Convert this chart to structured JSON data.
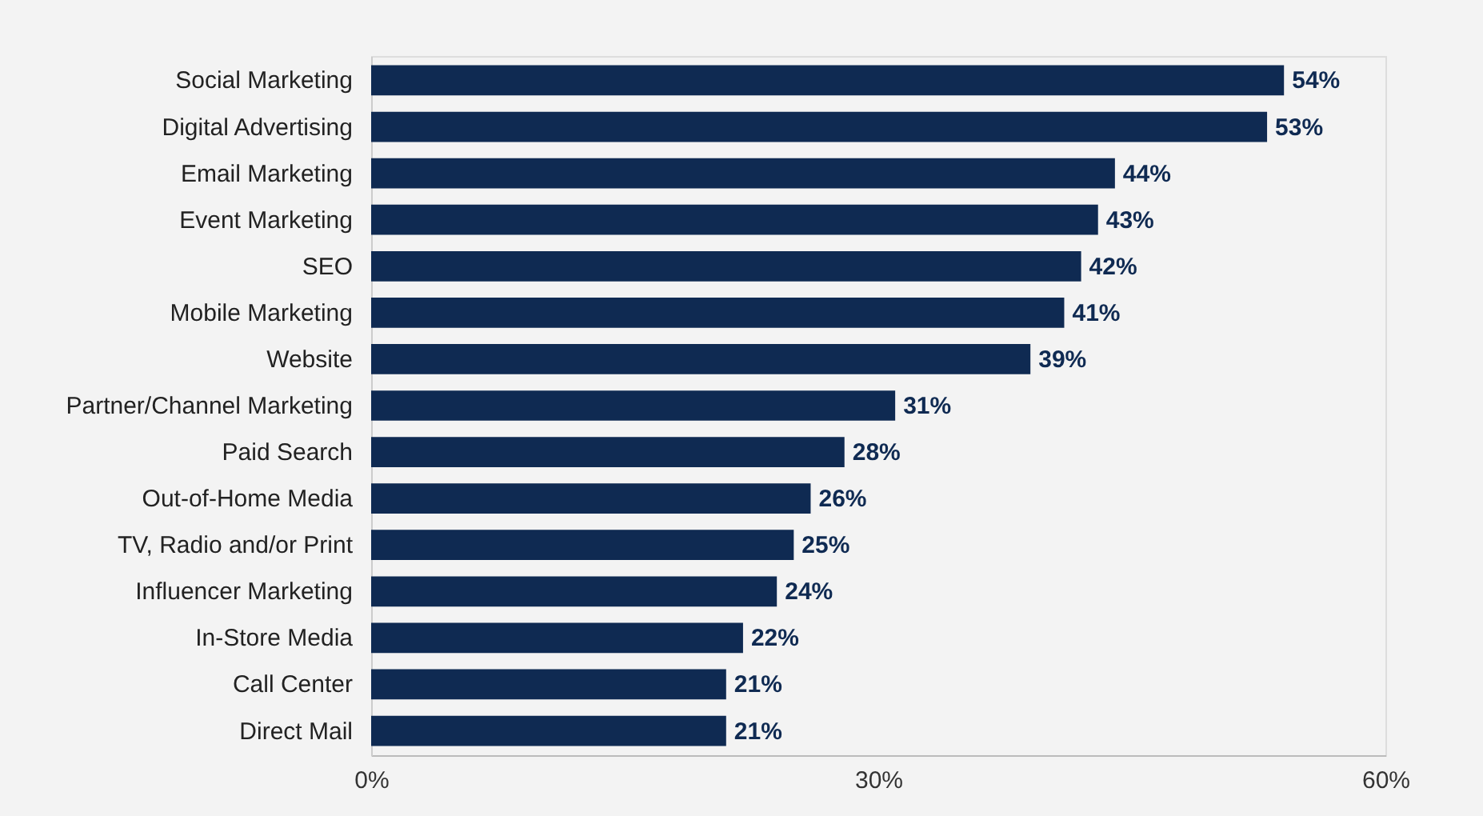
{
  "chart_data": {
    "type": "bar",
    "orientation": "horizontal",
    "categories": [
      "Social Marketing",
      "Digital Advertising",
      "Email Marketing",
      "Event Marketing",
      "SEO",
      "Mobile Marketing",
      "Website",
      "Partner/Channel Marketing",
      "Paid Search",
      "Out-of-Home Media",
      "TV, Radio and/or Print",
      "Influencer Marketing",
      "In-Store Media",
      "Call Center",
      "Direct Mail"
    ],
    "values": [
      54,
      53,
      44,
      43,
      42,
      41,
      39,
      31,
      28,
      26,
      25,
      24,
      22,
      21,
      21
    ],
    "value_labels": [
      "54%",
      "53%",
      "44%",
      "43%",
      "42%",
      "41%",
      "39%",
      "31%",
      "28%",
      "26%",
      "25%",
      "24%",
      "22%",
      "21%",
      "21%"
    ],
    "color": "#0f2a52",
    "xlim": [
      0,
      60
    ],
    "xticks": [
      {
        "value": 0,
        "label": "0%"
      },
      {
        "value": 30,
        "label": "30%"
      },
      {
        "value": 60,
        "label": "60%"
      }
    ],
    "grid": false
  }
}
